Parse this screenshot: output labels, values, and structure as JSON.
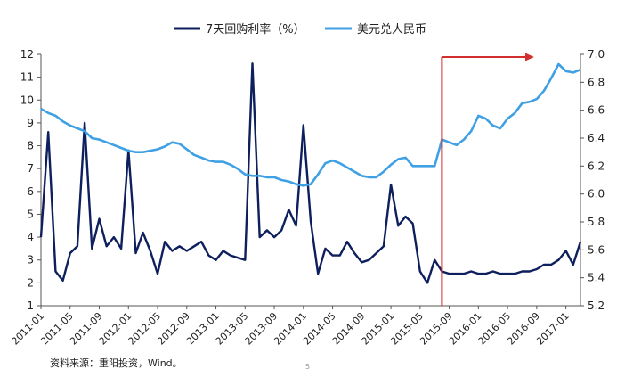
{
  "chart_data": {
    "type": "line",
    "title": "",
    "xlabel": "",
    "ylabel": "",
    "y2label": "",
    "grid": false,
    "legend_position": "top-center",
    "ylim_left": [
      1,
      12
    ],
    "ylim_right": [
      5.2,
      7.0
    ],
    "yticks_left": [
      "1",
      "2",
      "3",
      "4",
      "5",
      "6",
      "7",
      "8",
      "9",
      "10",
      "11",
      "12"
    ],
    "yticks_right": [
      "5.2",
      "5.4",
      "5.6",
      "5.8",
      "6.0",
      "6.2",
      "6.4",
      "6.6",
      "6.8",
      "7.0"
    ],
    "xticks": [
      "2011-01",
      "2011-05",
      "2011-09",
      "2012-01",
      "2012-05",
      "2012-09",
      "2013-01",
      "2013-05",
      "2013-09",
      "2014-01",
      "2014-05",
      "2014-09",
      "2015-01",
      "2015-05",
      "2015-09",
      "2016-01",
      "2016-05",
      "2016-09",
      "2017-01"
    ],
    "series": [
      {
        "name": "7天回购利率（%）",
        "axis": "left",
        "color": "#0d1f5c",
        "x": [
          "2011-01",
          "2011-02",
          "2011-03",
          "2011-04",
          "2011-05",
          "2011-06",
          "2011-07",
          "2011-08",
          "2011-09",
          "2011-10",
          "2011-11",
          "2011-12",
          "2012-01",
          "2012-02",
          "2012-03",
          "2012-04",
          "2012-05",
          "2012-06",
          "2012-07",
          "2012-08",
          "2012-09",
          "2012-10",
          "2012-11",
          "2012-12",
          "2013-01",
          "2013-02",
          "2013-03",
          "2013-04",
          "2013-05",
          "2013-06",
          "2013-07",
          "2013-08",
          "2013-09",
          "2013-10",
          "2013-11",
          "2013-12",
          "2014-01",
          "2014-02",
          "2014-03",
          "2014-04",
          "2014-05",
          "2014-06",
          "2014-07",
          "2014-08",
          "2014-09",
          "2014-10",
          "2014-11",
          "2014-12",
          "2015-01",
          "2015-02",
          "2015-03",
          "2015-04",
          "2015-05",
          "2015-06",
          "2015-07",
          "2015-08",
          "2015-09",
          "2015-10",
          "2015-11",
          "2015-12",
          "2016-01",
          "2016-02",
          "2016-03",
          "2016-04",
          "2016-05",
          "2016-06",
          "2016-07",
          "2016-08",
          "2016-09",
          "2016-10",
          "2016-11",
          "2016-12",
          "2017-01",
          "2017-02",
          "2017-03"
        ],
        "values": [
          4.0,
          8.6,
          2.5,
          2.1,
          3.3,
          3.6,
          9.0,
          3.5,
          4.8,
          3.6,
          4.0,
          3.5,
          7.8,
          3.3,
          4.2,
          3.4,
          2.4,
          3.8,
          3.4,
          3.6,
          3.4,
          3.6,
          3.8,
          3.2,
          3.0,
          3.4,
          3.2,
          3.1,
          3.0,
          11.6,
          4.0,
          4.3,
          4.0,
          4.3,
          5.2,
          4.5,
          8.9,
          4.7,
          2.4,
          3.5,
          3.2,
          3.2,
          3.8,
          3.3,
          2.9,
          3.0,
          3.3,
          3.6,
          6.3,
          4.5,
          4.9,
          4.6,
          2.5,
          2.0,
          3.0,
          2.5,
          2.4,
          2.4,
          2.4,
          2.5,
          2.4,
          2.4,
          2.5,
          2.4,
          2.4,
          2.4,
          2.5,
          2.5,
          2.6,
          2.8,
          2.8,
          3.0,
          3.4,
          2.8,
          3.8
        ]
      },
      {
        "name": "美元兑人民币",
        "axis": "right",
        "color": "#3fa0e3",
        "x": [
          "2011-01",
          "2011-02",
          "2011-03",
          "2011-04",
          "2011-05",
          "2011-06",
          "2011-07",
          "2011-08",
          "2011-09",
          "2011-10",
          "2011-11",
          "2011-12",
          "2012-01",
          "2012-02",
          "2012-03",
          "2012-04",
          "2012-05",
          "2012-06",
          "2012-07",
          "2012-08",
          "2012-09",
          "2012-10",
          "2012-11",
          "2012-12",
          "2013-01",
          "2013-02",
          "2013-03",
          "2013-04",
          "2013-05",
          "2013-06",
          "2013-07",
          "2013-08",
          "2013-09",
          "2013-10",
          "2013-11",
          "2013-12",
          "2014-01",
          "2014-02",
          "2014-03",
          "2014-04",
          "2014-05",
          "2014-06",
          "2014-07",
          "2014-08",
          "2014-09",
          "2014-10",
          "2014-11",
          "2014-12",
          "2015-01",
          "2015-02",
          "2015-03",
          "2015-04",
          "2015-05",
          "2015-06",
          "2015-07",
          "2015-08",
          "2015-09",
          "2015-10",
          "2015-11",
          "2015-12",
          "2016-01",
          "2016-02",
          "2016-03",
          "2016-04",
          "2016-05",
          "2016-06",
          "2016-07",
          "2016-08",
          "2016-09",
          "2016-10",
          "2016-11",
          "2016-12",
          "2017-01",
          "2017-02",
          "2017-03"
        ],
        "values": [
          6.61,
          6.58,
          6.56,
          6.52,
          6.49,
          6.47,
          6.45,
          6.4,
          6.39,
          6.37,
          6.35,
          6.33,
          6.31,
          6.3,
          6.3,
          6.31,
          6.32,
          6.34,
          6.37,
          6.36,
          6.32,
          6.28,
          6.26,
          6.24,
          6.23,
          6.23,
          6.21,
          6.18,
          6.14,
          6.13,
          6.13,
          6.12,
          6.12,
          6.1,
          6.09,
          6.07,
          6.06,
          6.07,
          6.14,
          6.22,
          6.24,
          6.22,
          6.19,
          6.16,
          6.13,
          6.12,
          6.12,
          6.16,
          6.21,
          6.25,
          6.26,
          6.2,
          6.2,
          6.2,
          6.2,
          6.39,
          6.37,
          6.35,
          6.39,
          6.45,
          6.56,
          6.54,
          6.49,
          6.47,
          6.54,
          6.58,
          6.65,
          6.66,
          6.68,
          6.74,
          6.83,
          6.93,
          6.88,
          6.87,
          6.89
        ]
      }
    ],
    "annotations": [
      {
        "type": "vertical-line-with-right-arrow",
        "x": "2015-08",
        "color": "#d32f2f"
      }
    ],
    "source": "资料来源：重阳投资，Wind。",
    "page_number": "5"
  }
}
